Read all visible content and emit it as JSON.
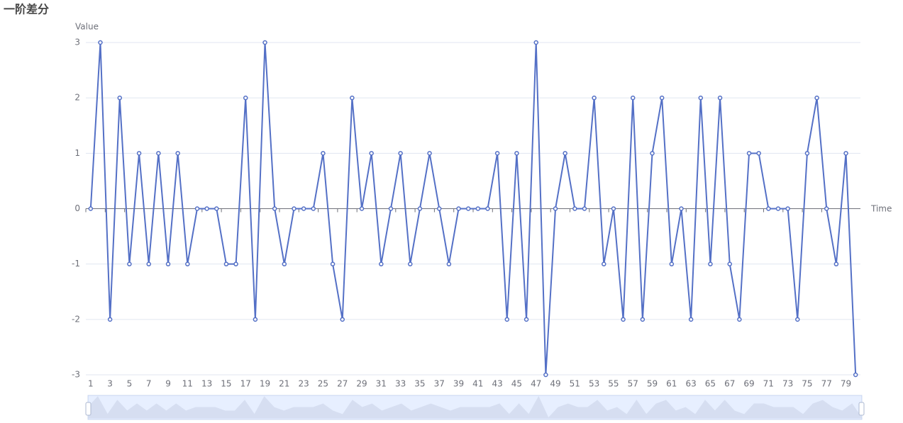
{
  "chart_data": {
    "type": "line",
    "title": "一阶差分",
    "ylabel": "Value",
    "xlabel": "Time",
    "categories": [
      1,
      null,
      3,
      null,
      5,
      null,
      7,
      null,
      9,
      null,
      11,
      null,
      13,
      null,
      15,
      null,
      17,
      null,
      19,
      null,
      21,
      null,
      23,
      null,
      25,
      null,
      27,
      null,
      29,
      null,
      31,
      null,
      33,
      null,
      35,
      null,
      37,
      null,
      39,
      null,
      41,
      null,
      43,
      null,
      45,
      null,
      47,
      null,
      49,
      null,
      51,
      null,
      53,
      null,
      55,
      null,
      57,
      null,
      59,
      null,
      61,
      null,
      63,
      null,
      65,
      null,
      67,
      null,
      69,
      null,
      71,
      null,
      73,
      null,
      75,
      null,
      77,
      null,
      79,
      null
    ],
    "values": [
      0,
      3,
      -2,
      2,
      -1,
      1,
      -1,
      1,
      -1,
      1,
      -1,
      0,
      0,
      0,
      -1,
      -1,
      2,
      -2,
      3,
      0,
      -1,
      0,
      0,
      0,
      1,
      -1,
      -2,
      2,
      0,
      1,
      -1,
      0,
      1,
      -1,
      0,
      1,
      0,
      -1,
      0,
      0,
      0,
      0,
      1,
      -2,
      1,
      -2,
      3,
      -3,
      0,
      1,
      0,
      0,
      2,
      -1,
      0,
      -2,
      2,
      -2,
      1,
      2,
      -1,
      0,
      -2,
      2,
      -1,
      2,
      -1,
      -2,
      1,
      1,
      0,
      0,
      0,
      -2,
      1,
      2,
      0,
      -1,
      1,
      -3
    ],
    "color": "#5470c6",
    "ylim": [
      -3,
      3
    ],
    "yticks": [
      -3,
      -2,
      -1,
      0,
      1,
      2,
      3
    ],
    "grid": true
  }
}
